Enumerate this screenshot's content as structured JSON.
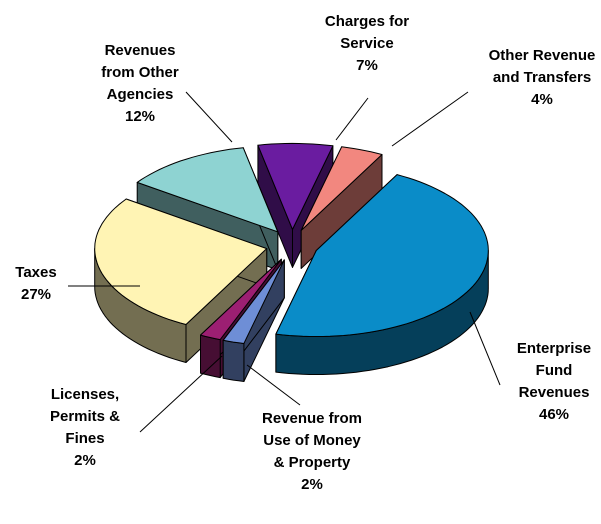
{
  "chart_data": {
    "type": "pie",
    "categories": [
      "Enterprise Fund Revenues",
      "Revenue from Use of Money & Property",
      "Licenses, Permits & Fines",
      "Taxes",
      "Revenues from Other Agencies",
      "Charges for Service",
      "Other Revenue and Transfers"
    ],
    "values": [
      46,
      2,
      2,
      27,
      12,
      7,
      4
    ],
    "value_labels": [
      "46%",
      "2%",
      "2%",
      "27%",
      "12%",
      "7%",
      "4%"
    ],
    "colors": [
      "#0a8cc8",
      "#6e8ed6",
      "#9c1f72",
      "#fff4b4",
      "#8ed3d2",
      "#6a1ca0",
      "#f2877f"
    ]
  }
}
